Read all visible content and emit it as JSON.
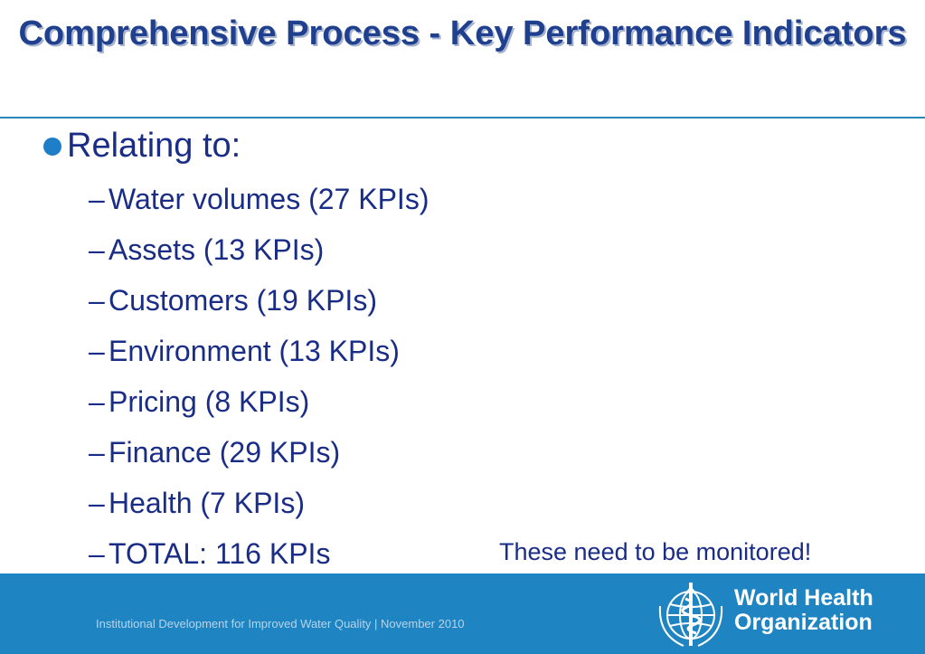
{
  "slide": {
    "title": "Comprehensive Process - Key Performance Indicators",
    "bullet": "Relating to:",
    "items": [
      "Water volumes (27 KPIs)",
      "Assets (13 KPIs)",
      "Customers (19 KPIs)",
      "Environment (13 KPIs)",
      "Pricing (8 KPIs)",
      "Finance (29 KPIs)",
      "Health (7 KPIs)",
      "TOTAL: 116 KPIs"
    ],
    "dash": "–",
    "note": "These need to be monitored!"
  },
  "footer": {
    "text": "Institutional Development for Improved Water Quality | November 2010"
  },
  "logo": {
    "line1": "World Health",
    "line2": "Organization",
    "icon": "who-emblem-icon"
  },
  "colors": {
    "title": "#1f3f8f",
    "body_text": "#1a2d86",
    "bullet": "#1e7ec8",
    "footer_band": "#1f84c2",
    "rule": "#2b86bd"
  }
}
